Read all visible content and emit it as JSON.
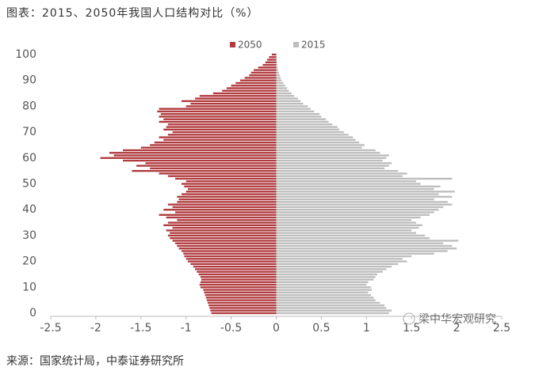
{
  "chart_data": {
    "type": "pyramid",
    "title": "图表：2015、2050年我国人口结构对比（%）",
    "source": "来源：国家统计局，中泰证券研究所",
    "watermark": "梁中华宏观研究",
    "y": [
      0,
      1,
      2,
      3,
      4,
      5,
      6,
      7,
      8,
      9,
      10,
      11,
      12,
      13,
      14,
      15,
      16,
      17,
      18,
      19,
      20,
      21,
      22,
      23,
      24,
      25,
      26,
      27,
      28,
      29,
      30,
      31,
      32,
      33,
      34,
      35,
      36,
      37,
      38,
      39,
      40,
      41,
      42,
      43,
      44,
      45,
      46,
      47,
      48,
      49,
      50,
      51,
      52,
      53,
      54,
      55,
      56,
      57,
      58,
      59,
      60,
      61,
      62,
      63,
      64,
      65,
      66,
      67,
      68,
      69,
      70,
      71,
      72,
      73,
      74,
      75,
      76,
      77,
      78,
      79,
      80,
      81,
      82,
      83,
      84,
      85,
      86,
      87,
      88,
      89,
      90,
      91,
      92,
      93,
      94,
      95,
      96,
      97,
      98,
      99,
      100
    ],
    "series": [
      {
        "name": "2050",
        "color": "#b03a3e",
        "values": [
          -0.72,
          -0.73,
          -0.74,
          -0.75,
          -0.76,
          -0.77,
          -0.78,
          -0.79,
          -0.8,
          -0.81,
          -0.84,
          -0.85,
          -0.84,
          -0.83,
          -0.84,
          -0.86,
          -0.88,
          -0.9,
          -0.92,
          -0.95,
          -0.98,
          -1.0,
          -1.02,
          -1.03,
          -1.05,
          -1.08,
          -1.1,
          -1.12,
          -1.15,
          -1.18,
          -1.2,
          -1.18,
          -1.22,
          -1.15,
          -1.25,
          -1.2,
          -1.1,
          -1.22,
          -1.3,
          -1.12,
          -1.25,
          -1.15,
          -1.2,
          -1.1,
          -1.08,
          -1.1,
          -1.05,
          -1.0,
          -0.98,
          -1.02,
          -1.05,
          -1.0,
          -1.12,
          -1.2,
          -1.3,
          -1.6,
          -1.4,
          -1.55,
          -1.45,
          -1.7,
          -1.95,
          -1.8,
          -1.85,
          -1.7,
          -1.5,
          -1.4,
          -1.35,
          -1.25,
          -1.3,
          -1.2,
          -1.15,
          -1.25,
          -1.22,
          -1.2,
          -1.3,
          -1.25,
          -1.3,
          -1.28,
          -1.32,
          -1.3,
          -1.0,
          -0.95,
          -1.05,
          -0.9,
          -0.85,
          -0.7,
          -0.6,
          -0.55,
          -0.5,
          -0.45,
          -0.4,
          -0.35,
          -0.3,
          -0.28,
          -0.25,
          -0.2,
          -0.15,
          -0.12,
          -0.1,
          -0.08,
          -0.05
        ]
      },
      {
        "name": "2015",
        "color": "#bdbdbd",
        "values": [
          1.25,
          1.28,
          1.22,
          1.2,
          1.15,
          1.1,
          1.08,
          1.05,
          1.02,
          1.06,
          1.05,
          1.0,
          1.02,
          1.08,
          1.1,
          1.12,
          1.18,
          1.22,
          1.28,
          1.35,
          1.45,
          1.4,
          1.5,
          1.75,
          1.9,
          2.0,
          1.95,
          1.85,
          2.02,
          1.7,
          1.65,
          1.55,
          1.5,
          1.58,
          1.62,
          1.55,
          1.5,
          1.6,
          1.7,
          1.75,
          1.8,
          1.85,
          1.95,
          1.9,
          1.75,
          1.95,
          1.8,
          1.98,
          1.75,
          1.82,
          1.6,
          1.55,
          1.95,
          1.4,
          1.45,
          1.35,
          1.2,
          1.25,
          1.28,
          1.18,
          1.22,
          1.25,
          1.15,
          1.1,
          0.95,
          0.98,
          0.92,
          0.88,
          0.85,
          0.8,
          0.75,
          0.7,
          0.68,
          0.62,
          0.58,
          0.55,
          0.5,
          0.48,
          0.42,
          0.38,
          0.35,
          0.3,
          0.27,
          0.24,
          0.2,
          0.17,
          0.14,
          0.12,
          0.1,
          0.08,
          0.06,
          0.05,
          0.04,
          0.03,
          0.02,
          0.015,
          0.01,
          0.01,
          0.005,
          0.005,
          0.003
        ]
      }
    ],
    "xlim": [
      -2.5,
      2.5
    ],
    "xticks": [
      -2.5,
      -2,
      -1.5,
      -1,
      -0.5,
      0,
      0.5,
      1,
      1.5,
      2,
      2.5
    ],
    "ylim": [
      0,
      100
    ],
    "yticks": [
      0,
      10,
      20,
      30,
      40,
      50,
      60,
      70,
      80,
      90,
      100
    ]
  }
}
